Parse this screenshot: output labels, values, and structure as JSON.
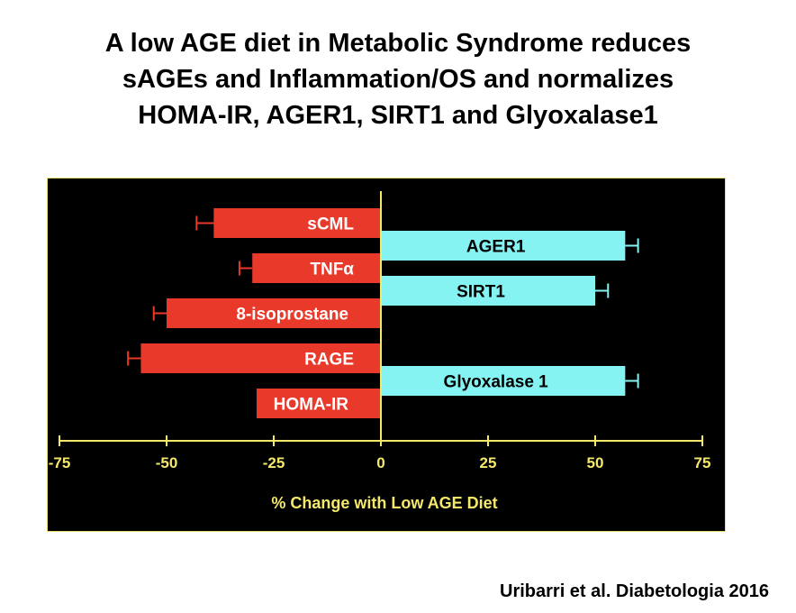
{
  "slide": {
    "title_lines": [
      "A low AGE diet in Metabolic Syndrome reduces",
      "sAGEs and Inflammation/OS and normalizes",
      "HOMA-IR, AGER1, SIRT1 and Glyoxalase1"
    ],
    "citation": "Uribarri et al. Diabetologia 2016"
  },
  "colors": {
    "panel_background": "#000000",
    "decrease_bar": "#e8392a",
    "increase_bar": "#86f3f3",
    "axis": "#f5e86a",
    "decrease_label": "#ffffff",
    "increase_label": "#000000"
  },
  "chart_data": {
    "type": "bar",
    "orientation": "horizontal",
    "xlabel": "% Change with Low AGE Diet",
    "xlim": [
      -75,
      75
    ],
    "xticks": [
      -75,
      -50,
      -25,
      0,
      25,
      50,
      75
    ],
    "grid": false,
    "bars": [
      {
        "label": "sCML",
        "value": -39,
        "error": 4,
        "group": "decrease",
        "row": 0
      },
      {
        "label": "AGER1",
        "value": 57,
        "error": 3,
        "group": "increase",
        "row": 1
      },
      {
        "label": "TNFα",
        "value": -30,
        "error": 3,
        "group": "decrease",
        "row": 2
      },
      {
        "label": "SIRT1",
        "value": 50,
        "error": 3,
        "group": "increase",
        "row": 3
      },
      {
        "label": "8-isoprostane",
        "value": -50,
        "error": 3,
        "group": "decrease",
        "row": 4
      },
      {
        "label": "RAGE",
        "value": -56,
        "error": 3,
        "group": "decrease",
        "row": 6
      },
      {
        "label": "Glyoxalase 1",
        "value": 57,
        "error": 3,
        "group": "increase",
        "row": 7
      },
      {
        "label": "HOMA-IR",
        "value": -29,
        "error": null,
        "group": "decrease",
        "row": 8
      }
    ]
  }
}
